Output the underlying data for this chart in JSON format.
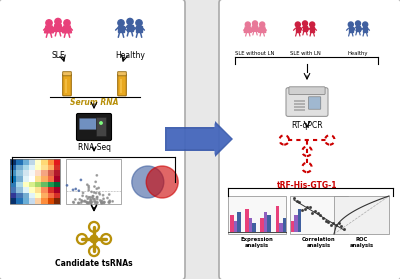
{
  "bg_color": "#e8e8e8",
  "panel_bg": "#ffffff",
  "panel_edge": "#aaaaaa",
  "pink_color": "#e8407a",
  "light_pink_color": "#f0829a",
  "blue_color": "#4060a0",
  "dark_red_color": "#cc0000",
  "gold_color": "#b8900a",
  "arrow_big_color": "#4060b0",
  "left_labels": {
    "sle": "SLE",
    "healthy": "Healthy",
    "serum_rna": "Serum RNA",
    "rna_seq": "RNA Seq",
    "candidate": "Candidate tsRNAs"
  },
  "right_labels": {
    "sle_without_ln": "SLE without LN",
    "sle_with_ln": "SLE with LN",
    "healthy": "Healthy",
    "rt_qpcr": "RT-qPCR",
    "trf": "tRF-His-GTG-1",
    "expression": "Expression\nanalysis",
    "correlation": "Correlation\nanalysis",
    "roc": "ROC\nanalysis"
  },
  "font_size_label": 5.5,
  "font_size_small": 4.5
}
